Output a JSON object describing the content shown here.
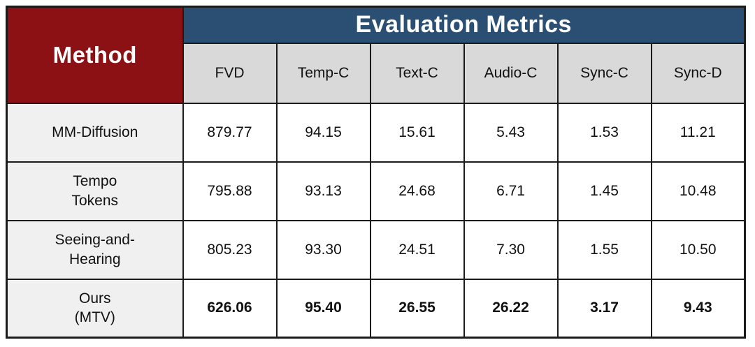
{
  "chart_data": {
    "type": "table",
    "row_group_header": "Method",
    "col_group_header": "Evaluation Metrics",
    "columns": [
      "FVD",
      "Temp-C",
      "Text-C",
      "Audio-C",
      "Sync-C",
      "Sync-D"
    ],
    "rows": [
      {
        "method": "MM-Diffusion",
        "values": [
          "879.77",
          "94.15",
          "15.61",
          "5.43",
          "1.53",
          "11.21"
        ],
        "bold": false
      },
      {
        "method": "Tempo\nTokens",
        "values": [
          "795.88",
          "93.13",
          "24.68",
          "6.71",
          "1.45",
          "10.48"
        ],
        "bold": false
      },
      {
        "method": "Seeing-and-\nHearing",
        "values": [
          "805.23",
          "93.30",
          "24.51",
          "7.30",
          "1.55",
          "10.50"
        ],
        "bold": false
      },
      {
        "method": "Ours\n(MTV)",
        "values": [
          "626.06",
          "95.40",
          "26.55",
          "26.22",
          "3.17",
          "9.43"
        ],
        "bold": true
      }
    ]
  },
  "colors": {
    "method_header_bg": "#8C1114",
    "metrics_header_bg": "#2A4F73",
    "subheader_bg": "#D9D9D9",
    "method_col_bg": "#F0F0F0",
    "border": "#1b1b1b"
  }
}
